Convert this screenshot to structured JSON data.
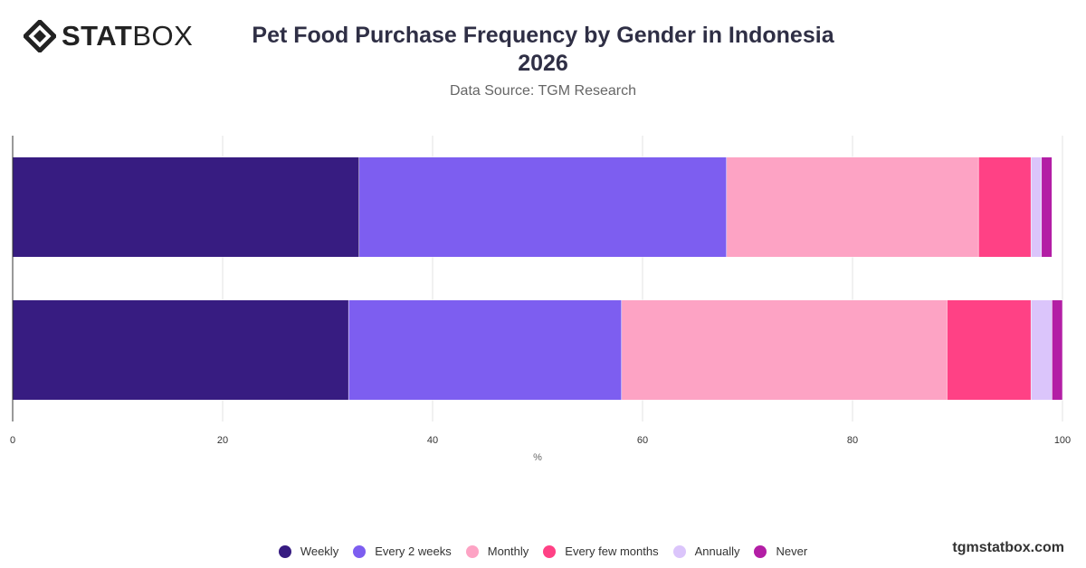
{
  "brand": {
    "bold": "STAT",
    "light": "BOX"
  },
  "title_line1": "Pet Food Purchase Frequency by Gender in Indonesia",
  "title_line2": "2026",
  "subtitle": "Data Source: TGM Research",
  "footer": "tgmstatbox.com",
  "chart_data": {
    "type": "bar",
    "orientation": "horizontal",
    "stacked": true,
    "categories": [
      "",
      ""
    ],
    "xlabel": "%",
    "ylabel": "",
    "xlim": [
      0,
      100
    ],
    "x_ticks": [
      "0",
      "20",
      "40",
      "60",
      "80",
      "100"
    ],
    "grid": true,
    "legend_position": "bottom",
    "series": [
      {
        "name": "Weekly",
        "color": "#371c81",
        "values": [
          33,
          32
        ]
      },
      {
        "name": "Every 2 weeks",
        "color": "#7d5ef0",
        "values": [
          35,
          26
        ]
      },
      {
        "name": "Monthly",
        "color": "#fda3c4",
        "values": [
          24,
          31
        ]
      },
      {
        "name": "Every few months",
        "color": "#ff4185",
        "values": [
          5,
          8
        ]
      },
      {
        "name": "Annually",
        "color": "#dbc5fb",
        "values": [
          1,
          2
        ]
      },
      {
        "name": "Never",
        "color": "#b31ea5",
        "values": [
          1,
          1
        ]
      }
    ]
  }
}
